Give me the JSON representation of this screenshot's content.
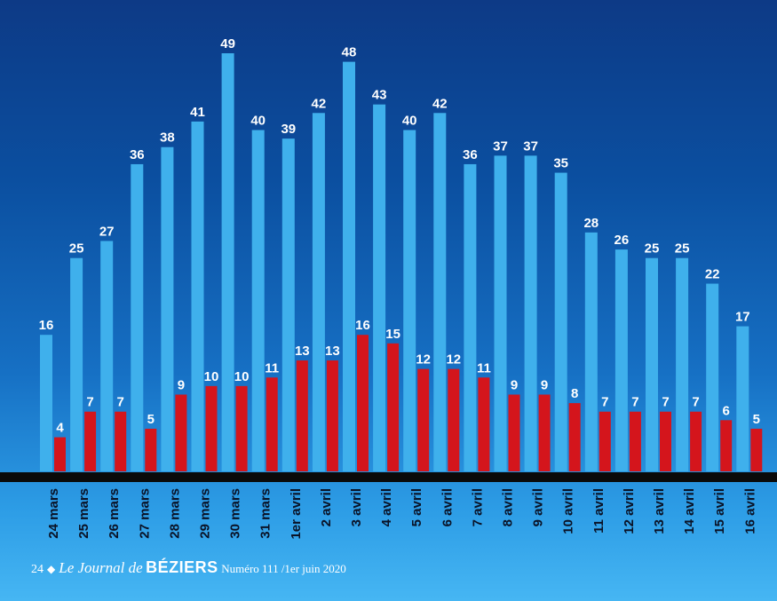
{
  "chart_data": {
    "type": "bar",
    "categories": [
      "24 mars",
      "25 mars",
      "26 mars",
      "27 mars",
      "28 mars",
      "29 mars",
      "30 mars",
      "31 mars",
      "1er avril",
      "2 avril",
      "3 avril",
      "4 avril",
      "5 avril",
      "6 avril",
      "7 avril",
      "8 avril",
      "9 avril",
      "10 avril",
      "11 avril",
      "12 avril",
      "13 avril",
      "14 avril",
      "15 avril",
      "16 avril"
    ],
    "series": [
      {
        "color": "#3fb0ec",
        "values": [
          16,
          25,
          27,
          36,
          38,
          41,
          49,
          40,
          39,
          42,
          48,
          43,
          40,
          42,
          36,
          37,
          37,
          35,
          28,
          26,
          25,
          25,
          22,
          17
        ]
      },
      {
        "color": "#d4151c",
        "values": [
          4,
          7,
          7,
          5,
          9,
          10,
          10,
          11,
          13,
          13,
          16,
          15,
          12,
          12,
          11,
          9,
          9,
          8,
          7,
          7,
          7,
          7,
          6,
          5
        ]
      }
    ],
    "ylim": [
      0,
      49
    ],
    "grid": false,
    "baseline_color": "#0a0a0a"
  },
  "footer": {
    "page_number": "24",
    "diamond": "◆",
    "journal_prefix": "Le Journal de",
    "brand": "BÉZIERS",
    "issue": "Numéro 111 /1er juin 2020"
  }
}
